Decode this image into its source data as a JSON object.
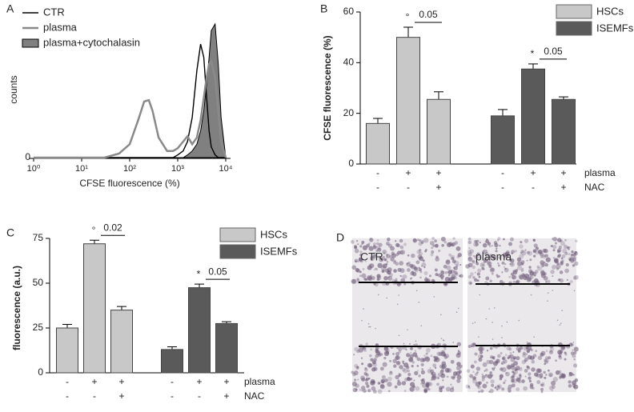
{
  "panel_labels": [
    "A",
    "B",
    "C",
    "D"
  ],
  "chart_data": [
    {
      "type": "line",
      "xlabel": "CFSE fluorescence (%)",
      "ylabel": "counts",
      "log_x": true,
      "xlim": [
        1,
        10000
      ],
      "xticks": [
        {
          "value": 1,
          "label": "10⁰"
        },
        {
          "value": 10,
          "label": "10¹"
        },
        {
          "value": 100,
          "label": "10²"
        },
        {
          "value": 1000,
          "label": "10³"
        },
        {
          "value": 10000,
          "label": "10⁴"
        }
      ],
      "ylim": [
        0,
        100
      ],
      "yticks": [
        0
      ],
      "legend": "top-left",
      "x": [
        1,
        10,
        30,
        60,
        100,
        150,
        200,
        250,
        300,
        400,
        600,
        800,
        1000,
        1300,
        1600,
        2000,
        2500,
        3000,
        3500,
        4000,
        4500,
        5000,
        6000,
        7000,
        8000,
        10000
      ],
      "series": [
        {
          "name": "CTR",
          "color": "#000000",
          "filled": false,
          "values": [
            0,
            0,
            0,
            0,
            0,
            0,
            0,
            0,
            0,
            0,
            0,
            0,
            2,
            5,
            12,
            30,
            65,
            85,
            75,
            45,
            20,
            8,
            2,
            0,
            0,
            0
          ]
        },
        {
          "name": "plasma",
          "color": "#8a8a8a",
          "filled": false,
          "values": [
            0,
            0,
            0,
            3,
            10,
            28,
            42,
            43,
            35,
            15,
            5,
            5,
            7,
            12,
            16,
            10,
            15,
            28,
            45,
            60,
            70,
            72,
            60,
            35,
            12,
            0
          ]
        },
        {
          "name": "plasma+cytochalasin",
          "color": "#808080",
          "filled": true,
          "values": [
            0,
            0,
            0,
            0,
            0,
            0,
            0,
            0,
            0,
            0,
            0,
            0,
            0,
            0,
            2,
            5,
            10,
            20,
            35,
            55,
            75,
            95,
            100,
            70,
            30,
            0
          ]
        }
      ]
    },
    {
      "type": "bar",
      "ylabel": "CFSE fluorescence (%)",
      "ylim": [
        0,
        60
      ],
      "yticks": [
        0,
        20,
        40,
        60
      ],
      "legend": "top-right",
      "conditions": [
        {
          "name": "plasma",
          "signs": [
            "-",
            "+",
            "+",
            "-",
            "+",
            "+"
          ]
        },
        {
          "name": "NAC",
          "signs": [
            "-",
            "-",
            "+",
            "-",
            "-",
            "+"
          ]
        }
      ],
      "series": [
        {
          "name": "HSCs",
          "color": "#c8c8c8",
          "values": [
            16,
            50,
            25.5
          ],
          "errors": [
            2,
            4,
            3
          ],
          "annotation": {
            "symbol": "°",
            "p_value": "0.05"
          }
        },
        {
          "name": "ISEMFs",
          "color": "#5a5a5a",
          "values": [
            19,
            37.5,
            25.5
          ],
          "errors": [
            2.5,
            2,
            1
          ],
          "annotation": {
            "symbol": "*",
            "p_value": "0.05"
          }
        }
      ]
    },
    {
      "type": "bar",
      "ylabel": "fluorescence (a.u.)",
      "ylim": [
        0,
        75
      ],
      "yticks": [
        0,
        25,
        50,
        75
      ],
      "legend": "top-right",
      "conditions": [
        {
          "name": "plasma",
          "signs": [
            "-",
            "+",
            "+",
            "-",
            "+",
            "+"
          ]
        },
        {
          "name": "NAC",
          "signs": [
            "-",
            "-",
            "+",
            "-",
            "-",
            "+"
          ]
        }
      ],
      "series": [
        {
          "name": "HSCs",
          "color": "#c8c8c8",
          "values": [
            25,
            72,
            35
          ],
          "errors": [
            2,
            2,
            2
          ],
          "annotation": {
            "symbol": "°",
            "p_value": "0.02"
          }
        },
        {
          "name": "ISEMFs",
          "color": "#5a5a5a",
          "values": [
            13,
            47.5,
            27.5
          ],
          "errors": [
            1.5,
            2,
            1
          ],
          "annotation": {
            "symbol": "*",
            "p_value": "0.05"
          }
        }
      ]
    }
  ],
  "images": [
    {
      "label": "CTR"
    },
    {
      "label": "plasma"
    }
  ]
}
